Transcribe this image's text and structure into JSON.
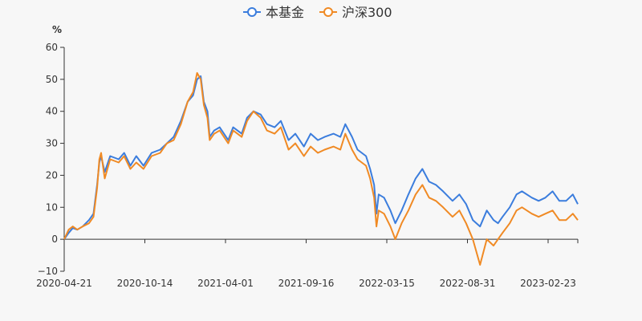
{
  "chart_data": {
    "type": "line",
    "title": "",
    "xlabel": "",
    "ylabel": "%",
    "ylim": [
      -10,
      60
    ],
    "yticks": [
      "60",
      "50",
      "40",
      "30",
      "20",
      "10",
      "0",
      "−10"
    ],
    "xticks": [
      "2020-04-21",
      "2020-10-14",
      "2021-04-01",
      "2021-09-16",
      "2022-03-15",
      "2022-08-31",
      "2023-02-23"
    ],
    "legend_position": "top-center",
    "series": [
      {
        "name": "本基金",
        "color": "#3b7ddd",
        "points": [
          [
            "2020-04-21",
            0
          ],
          [
            "2020-05-01",
            2
          ],
          [
            "2020-05-10",
            3.5
          ],
          [
            "2020-05-20",
            3
          ],
          [
            "2020-06-01",
            4
          ],
          [
            "2020-06-15",
            6
          ],
          [
            "2020-06-25",
            8
          ],
          [
            "2020-07-03",
            17
          ],
          [
            "2020-07-08",
            24
          ],
          [
            "2020-07-12",
            26
          ],
          [
            "2020-07-20",
            21
          ],
          [
            "2020-08-01",
            26
          ],
          [
            "2020-08-20",
            25
          ],
          [
            "2020-09-01",
            27
          ],
          [
            "2020-09-15",
            23
          ],
          [
            "2020-09-28",
            26
          ],
          [
            "2020-10-14",
            23
          ],
          [
            "2020-11-01",
            27
          ],
          [
            "2020-11-20",
            28
          ],
          [
            "2020-12-05",
            30
          ],
          [
            "2020-12-20",
            32
          ],
          [
            "2021-01-05",
            37
          ],
          [
            "2021-01-20",
            43
          ],
          [
            "2021-02-01",
            45
          ],
          [
            "2021-02-10",
            50
          ],
          [
            "2021-02-18",
            51
          ],
          [
            "2021-02-25",
            43
          ],
          [
            "2021-03-05",
            40
          ],
          [
            "2021-03-10",
            32
          ],
          [
            "2021-03-20",
            34
          ],
          [
            "2021-04-01",
            35
          ],
          [
            "2021-04-20",
            31
          ],
          [
            "2021-05-01",
            35
          ],
          [
            "2021-05-20",
            33
          ],
          [
            "2021-06-01",
            38
          ],
          [
            "2021-06-15",
            40
          ],
          [
            "2021-07-01",
            39
          ],
          [
            "2021-07-15",
            36
          ],
          [
            "2021-08-01",
            35
          ],
          [
            "2021-08-15",
            37
          ],
          [
            "2021-09-01",
            31
          ],
          [
            "2021-09-16",
            33
          ],
          [
            "2021-10-05",
            29
          ],
          [
            "2021-10-20",
            33
          ],
          [
            "2021-11-05",
            31
          ],
          [
            "2021-11-20",
            32
          ],
          [
            "2021-12-10",
            33
          ],
          [
            "2021-12-25",
            32
          ],
          [
            "2022-01-05",
            36
          ],
          [
            "2022-01-20",
            32
          ],
          [
            "2022-02-01",
            28
          ],
          [
            "2022-02-20",
            26
          ],
          [
            "2022-03-01",
            22
          ],
          [
            "2022-03-10",
            17
          ],
          [
            "2022-03-15",
            8
          ],
          [
            "2022-03-20",
            14
          ],
          [
            "2022-04-01",
            13
          ],
          [
            "2022-04-15",
            9
          ],
          [
            "2022-04-26",
            5
          ],
          [
            "2022-05-10",
            9
          ],
          [
            "2022-05-25",
            14
          ],
          [
            "2022-06-10",
            19
          ],
          [
            "2022-06-25",
            22
          ],
          [
            "2022-07-10",
            18
          ],
          [
            "2022-07-25",
            17
          ],
          [
            "2022-08-10",
            15
          ],
          [
            "2022-08-31",
            12
          ],
          [
            "2022-09-15",
            14
          ],
          [
            "2022-09-30",
            11
          ],
          [
            "2022-10-15",
            6
          ],
          [
            "2022-10-31",
            4
          ],
          [
            "2022-11-15",
            9
          ],
          [
            "2022-11-30",
            6
          ],
          [
            "2022-12-10",
            5
          ],
          [
            "2022-12-20",
            7
          ],
          [
            "2023-01-05",
            10
          ],
          [
            "2023-01-20",
            14
          ],
          [
            "2023-02-01",
            15
          ],
          [
            "2023-02-23",
            13
          ],
          [
            "2023-03-10",
            12
          ],
          [
            "2023-03-25",
            13
          ],
          [
            "2023-04-10",
            15
          ],
          [
            "2023-04-25",
            12
          ],
          [
            "2023-05-10",
            12
          ],
          [
            "2023-05-25",
            14
          ],
          [
            "2023-06-05",
            11
          ]
        ]
      },
      {
        "name": "沪深300",
        "color": "#f08a24",
        "points": [
          [
            "2020-04-21",
            0
          ],
          [
            "2020-05-01",
            3
          ],
          [
            "2020-05-10",
            4
          ],
          [
            "2020-05-20",
            3
          ],
          [
            "2020-06-01",
            4
          ],
          [
            "2020-06-15",
            5
          ],
          [
            "2020-06-25",
            7
          ],
          [
            "2020-07-03",
            16
          ],
          [
            "2020-07-08",
            25
          ],
          [
            "2020-07-12",
            27
          ],
          [
            "2020-07-20",
            19
          ],
          [
            "2020-08-01",
            25
          ],
          [
            "2020-08-20",
            24
          ],
          [
            "2020-09-01",
            26
          ],
          [
            "2020-09-15",
            22
          ],
          [
            "2020-09-28",
            24
          ],
          [
            "2020-10-14",
            22
          ],
          [
            "2020-11-01",
            26
          ],
          [
            "2020-11-20",
            27
          ],
          [
            "2020-12-05",
            30
          ],
          [
            "2020-12-20",
            31
          ],
          [
            "2021-01-05",
            36
          ],
          [
            "2021-01-20",
            43
          ],
          [
            "2021-02-01",
            46
          ],
          [
            "2021-02-10",
            52
          ],
          [
            "2021-02-18",
            50
          ],
          [
            "2021-02-25",
            42
          ],
          [
            "2021-03-05",
            38
          ],
          [
            "2021-03-10",
            31
          ],
          [
            "2021-03-20",
            33
          ],
          [
            "2021-04-01",
            34
          ],
          [
            "2021-04-20",
            30
          ],
          [
            "2021-05-01",
            34
          ],
          [
            "2021-05-20",
            32
          ],
          [
            "2021-06-01",
            37
          ],
          [
            "2021-06-15",
            40
          ],
          [
            "2021-07-01",
            38
          ],
          [
            "2021-07-15",
            34
          ],
          [
            "2021-08-01",
            33
          ],
          [
            "2021-08-15",
            35
          ],
          [
            "2021-09-01",
            28
          ],
          [
            "2021-09-16",
            30
          ],
          [
            "2021-10-05",
            26
          ],
          [
            "2021-10-20",
            29
          ],
          [
            "2021-11-05",
            27
          ],
          [
            "2021-11-20",
            28
          ],
          [
            "2021-12-10",
            29
          ],
          [
            "2021-12-25",
            28
          ],
          [
            "2022-01-05",
            33
          ],
          [
            "2022-01-20",
            28
          ],
          [
            "2022-02-01",
            25
          ],
          [
            "2022-02-20",
            23
          ],
          [
            "2022-03-01",
            19
          ],
          [
            "2022-03-10",
            13
          ],
          [
            "2022-03-15",
            4
          ],
          [
            "2022-03-20",
            9
          ],
          [
            "2022-04-01",
            8
          ],
          [
            "2022-04-15",
            4
          ],
          [
            "2022-04-26",
            0
          ],
          [
            "2022-05-10",
            5
          ],
          [
            "2022-05-25",
            9
          ],
          [
            "2022-06-10",
            14
          ],
          [
            "2022-06-25",
            17
          ],
          [
            "2022-07-10",
            13
          ],
          [
            "2022-07-25",
            12
          ],
          [
            "2022-08-10",
            10
          ],
          [
            "2022-08-31",
            7
          ],
          [
            "2022-09-15",
            9
          ],
          [
            "2022-09-30",
            5
          ],
          [
            "2022-10-15",
            0
          ],
          [
            "2022-10-31",
            -8
          ],
          [
            "2022-11-15",
            0
          ],
          [
            "2022-11-30",
            -2
          ],
          [
            "2022-12-10",
            0
          ],
          [
            "2022-12-20",
            2
          ],
          [
            "2023-01-05",
            5
          ],
          [
            "2023-01-20",
            9
          ],
          [
            "2023-02-01",
            10
          ],
          [
            "2023-02-23",
            8
          ],
          [
            "2023-03-10",
            7
          ],
          [
            "2023-03-25",
            8
          ],
          [
            "2023-04-10",
            9
          ],
          [
            "2023-04-25",
            6
          ],
          [
            "2023-05-10",
            6
          ],
          [
            "2023-05-25",
            8
          ],
          [
            "2023-06-05",
            6
          ]
        ]
      }
    ]
  }
}
